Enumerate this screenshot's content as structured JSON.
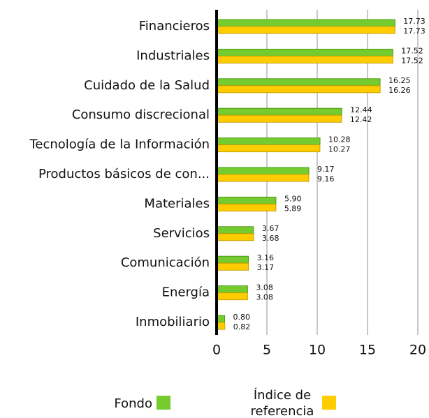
{
  "chart_data": {
    "type": "bar",
    "categories": [
      "Financieros",
      "Industriales",
      "Cuidado de la Salud",
      "Consumo discrecional",
      "Tecnología de la Información",
      "Productos básicos de con...",
      "Materiales",
      "Servicios",
      "Comunicación",
      "Energía",
      "Inmobiliario"
    ],
    "series": [
      {
        "name": "Fondo",
        "color": "#76cc2e",
        "values": [
          17.73,
          17.52,
          16.25,
          12.44,
          10.28,
          9.17,
          5.9,
          3.67,
          3.16,
          3.08,
          0.8
        ],
        "value_labels": [
          "17.73",
          "17.52",
          "16.25",
          "12.44",
          "10.28",
          "9.17",
          "5.90",
          "3.67",
          "3.16",
          "3.08",
          "0.80"
        ]
      },
      {
        "name": "Índice de referencia",
        "color": "#ffcc00",
        "values": [
          17.73,
          17.52,
          16.26,
          12.42,
          10.27,
          9.16,
          5.89,
          3.68,
          3.17,
          3.08,
          0.82
        ],
        "value_labels": [
          "17.73",
          "17.52",
          "16.26",
          "12.42",
          "10.27",
          "9.16",
          "5.89",
          "3.68",
          "3.17",
          "3.08",
          "0.82"
        ]
      }
    ],
    "xlim": [
      0,
      20
    ],
    "xticks": [
      0,
      5,
      10,
      15,
      20
    ],
    "grid": true
  }
}
